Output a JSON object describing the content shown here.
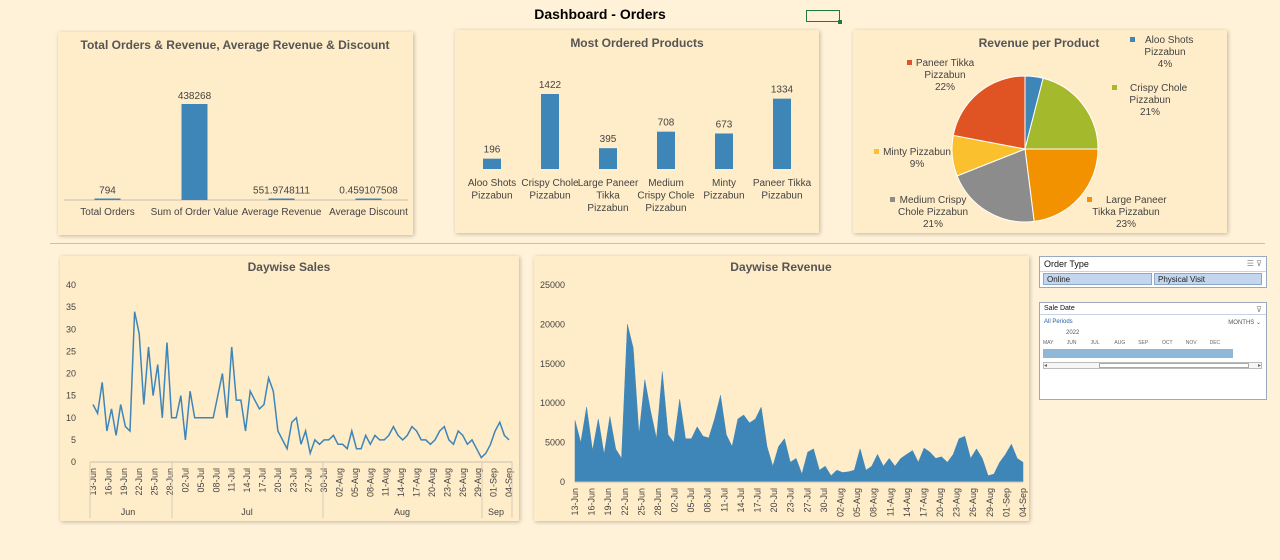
{
  "title": "Dashboard - Orders",
  "summary_chart": {
    "title": "Total Orders & Revenue, Average Revenue & Discount"
  },
  "products_chart": {
    "title": "Most Ordered Products"
  },
  "pie_chart": {
    "title": "Revenue per Product"
  },
  "sales_chart": {
    "title": "Daywise Sales",
    "months": [
      "Jun",
      "Jul",
      "Aug",
      "Sep"
    ]
  },
  "revenue_chart": {
    "title": "Daywise Revenue"
  },
  "order_type_slicer": {
    "title": "Order Type",
    "options": [
      "Online",
      "Physical Visit"
    ],
    "icons": [
      "multi-select-icon",
      "clear-filter-icon"
    ]
  },
  "sale_date_slicer": {
    "title": "Sale Date",
    "all_periods": "All Periods",
    "level": "MONTHS ⌄",
    "year": "2022",
    "months": [
      "MAY",
      "JUN",
      "JUL",
      "AUG",
      "SEP",
      "OCT",
      "NOV",
      "DEC"
    ]
  },
  "chart_data": [
    {
      "type": "bar",
      "title": "Total Orders & Revenue, Average Revenue & Discount",
      "categories": [
        "Total Orders",
        "Sum of Order Value",
        "Average Revenue",
        "Average Discount"
      ],
      "values": [
        794,
        438268,
        551.9748111,
        0.459107508
      ],
      "data_labels": [
        "794",
        "438268",
        "551.9748111",
        "0.459107508"
      ],
      "color": "#3f86b8"
    },
    {
      "type": "bar",
      "title": "Most Ordered Products",
      "categories": [
        [
          "Aloo Shots",
          "Pizzabun"
        ],
        [
          "Crispy Chole",
          "Pizzabun"
        ],
        [
          "Large Paneer",
          "Tikka",
          "Pizzabun"
        ],
        [
          "Medium",
          "Crispy Chole",
          "Pizzabun"
        ],
        [
          "Minty",
          "Pizzabun"
        ],
        [
          "Paneer Tikka",
          "Pizzabun"
        ]
      ],
      "values": [
        196,
        1422,
        395,
        708,
        673,
        1334
      ],
      "color": "#3f86b8"
    },
    {
      "type": "pie",
      "title": "Revenue per Product",
      "slices": [
        {
          "name": [
            "Aloo Shots",
            "Pizzabun"
          ],
          "pct": 4,
          "label": "4%",
          "color": "#3f86b8"
        },
        {
          "name": [
            "Crispy Chole",
            "Pizzabun"
          ],
          "pct": 21,
          "label": "21%",
          "color": "#a5b92c"
        },
        {
          "name": [
            "Large Paneer",
            "Tikka Pizzabun"
          ],
          "pct": 23,
          "label": "23%",
          "color": "#f29200"
        },
        {
          "name": [
            "Medium Crispy",
            "Chole Pizzabun"
          ],
          "pct": 21,
          "label": "21%",
          "color": "#8c8c8c"
        },
        {
          "name": [
            "Minty Pizzabun"
          ],
          "pct": 9,
          "label": "9%",
          "color": "#fbc02d"
        },
        {
          "name": [
            "Paneer Tikka",
            "Pizzabun"
          ],
          "pct": 22,
          "label": "22%",
          "color": "#e05424"
        }
      ]
    },
    {
      "type": "line",
      "title": "Daywise Sales",
      "ylim": [
        0,
        40
      ],
      "yticks": [
        0,
        5,
        10,
        15,
        20,
        25,
        30,
        35,
        40
      ],
      "x_ticks": [
        "13-Jun",
        "16-Jun",
        "19-Jun",
        "22-Jun",
        "25-Jun",
        "28-Jun",
        "02-Jul",
        "05-Jul",
        "08-Jul",
        "11-Jul",
        "14-Jul",
        "17-Jul",
        "20-Jul",
        "23-Jul",
        "27-Jul",
        "30-Jul",
        "02-Aug",
        "05-Aug",
        "08-Aug",
        "11-Aug",
        "14-Aug",
        "17-Aug",
        "20-Aug",
        "23-Aug",
        "26-Aug",
        "29-Aug",
        "01-Sep",
        "04-Sep"
      ],
      "month_groups": [
        "Jun",
        "Jul",
        "Aug",
        "Sep"
      ],
      "values": [
        13,
        11,
        18,
        7,
        12,
        6,
        13,
        8,
        7,
        34,
        29,
        13,
        26,
        15,
        22,
        10,
        27,
        10,
        10,
        15,
        5,
        16,
        10,
        10,
        10,
        10,
        10,
        15,
        20,
        10,
        26,
        14,
        14,
        7,
        16,
        14,
        12,
        13,
        19,
        16,
        7,
        5,
        3,
        9,
        10,
        4,
        7,
        2,
        5,
        4,
        5,
        5,
        6,
        4,
        4,
        3,
        7,
        3,
        3,
        6,
        4,
        6,
        5,
        5,
        6,
        8,
        6,
        5,
        6,
        8,
        7,
        5,
        5,
        4,
        5,
        7,
        8,
        5,
        4,
        7,
        6,
        4,
        5,
        3,
        1,
        2,
        4,
        7,
        9,
        6,
        5
      ],
      "color": "#3f86b8"
    },
    {
      "type": "area",
      "title": "Daywise Revenue",
      "ylim": [
        0,
        25000
      ],
      "yticks": [
        0,
        5000,
        10000,
        15000,
        20000,
        25000
      ],
      "x_ticks": [
        "13-Jun",
        "16-Jun",
        "19-Jun",
        "22-Jun",
        "25-Jun",
        "28-Jun",
        "02-Jul",
        "05-Jul",
        "08-Jul",
        "11-Jul",
        "14-Jul",
        "17-Jul",
        "20-Jul",
        "23-Jul",
        "27-Jul",
        "30-Jul",
        "02-Aug",
        "05-Aug",
        "08-Aug",
        "11-Aug",
        "14-Aug",
        "17-Aug",
        "20-Aug",
        "23-Aug",
        "26-Aug",
        "29-Aug",
        "01-Sep",
        "04-Sep"
      ],
      "values": [
        7800,
        5000,
        9500,
        4000,
        8000,
        3500,
        8300,
        4200,
        3000,
        20000,
        17000,
        6000,
        13000,
        9000,
        5500,
        14000,
        6000,
        5000,
        10500,
        5500,
        5500,
        7000,
        5800,
        5600,
        8000,
        11000,
        6000,
        4500,
        8000,
        8500,
        7500,
        8000,
        9500,
        4500,
        2000,
        4500,
        5500,
        2500,
        3000,
        1000,
        3800,
        4200,
        1500,
        2000,
        800,
        1500,
        1200,
        1300,
        1500,
        4200,
        1500,
        2000,
        3500,
        2000,
        3000,
        2000,
        3000,
        3500,
        4000,
        2500,
        4300,
        3800,
        3000,
        3200,
        2500,
        3500,
        5500,
        5800,
        3000,
        4200,
        3000,
        800,
        1000,
        2500,
        3500,
        4800,
        3000,
        2500
      ]
    }
  ]
}
